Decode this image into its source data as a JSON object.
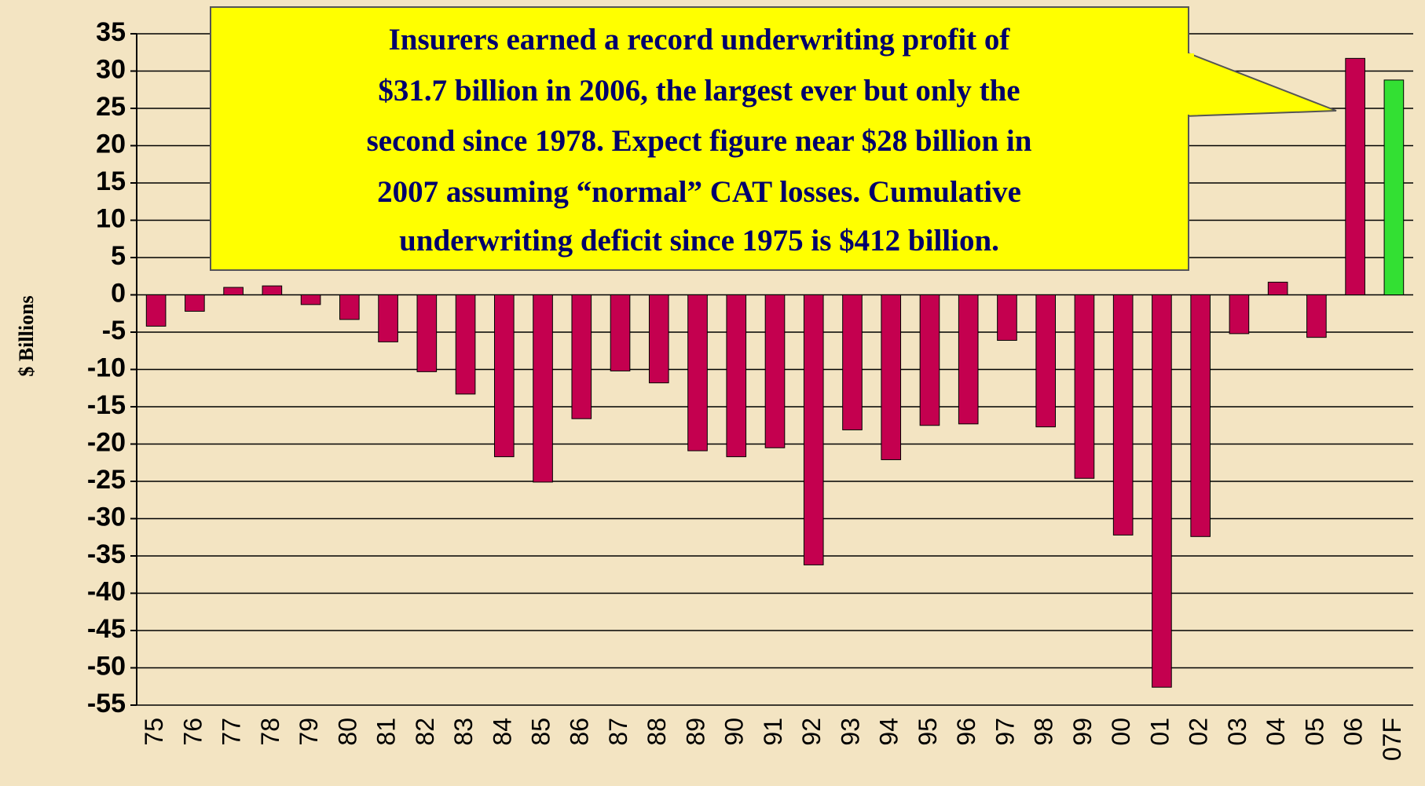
{
  "chart_data": {
    "type": "bar",
    "y_axis_label": "$ Billions",
    "annotation": [
      "Insurers earned a record underwriting profit of",
      "$31.7 billion in 2006, the largest ever but only the",
      "second since 1978.  Expect figure near $28 billion in",
      "2007 assuming “normal” CAT losses. Cumulative",
      "underwriting deficit since 1975 is $412 billion."
    ],
    "categories": [
      "75",
      "76",
      "77",
      "78",
      "79",
      "80",
      "81",
      "82",
      "83",
      "84",
      "85",
      "86",
      "87",
      "88",
      "89",
      "90",
      "91",
      "92",
      "93",
      "94",
      "95",
      "96",
      "97",
      "98",
      "99",
      "00",
      "01",
      "02",
      "03",
      "04",
      "05",
      "06",
      "07F"
    ],
    "values": [
      -4.2,
      -2.2,
      1.0,
      1.2,
      -1.3,
      -3.3,
      -6.3,
      -10.3,
      -13.3,
      -21.7,
      -25.1,
      -16.6,
      -10.2,
      -11.8,
      -20.9,
      -21.7,
      -20.5,
      -36.2,
      -18.1,
      -22.1,
      -17.5,
      -17.3,
      -6.1,
      -17.7,
      -24.6,
      -32.2,
      -52.6,
      -32.4,
      -5.2,
      1.7,
      -5.7,
      31.7,
      28.8
    ],
    "colors": [
      "#c4004f",
      "#c4004f",
      "#c4004f",
      "#c4004f",
      "#c4004f",
      "#c4004f",
      "#c4004f",
      "#c4004f",
      "#c4004f",
      "#c4004f",
      "#c4004f",
      "#c4004f",
      "#c4004f",
      "#c4004f",
      "#c4004f",
      "#c4004f",
      "#c4004f",
      "#c4004f",
      "#c4004f",
      "#c4004f",
      "#c4004f",
      "#c4004f",
      "#c4004f",
      "#c4004f",
      "#c4004f",
      "#c4004f",
      "#c4004f",
      "#c4004f",
      "#c4004f",
      "#c4004f",
      "#c4004f",
      "#c4004f",
      "#33e033"
    ],
    "ylim": [
      -55,
      35
    ],
    "yticks": [
      -55,
      -50,
      -45,
      -40,
      -35,
      -30,
      -25,
      -20,
      -15,
      -10,
      -5,
      0,
      5,
      10,
      15,
      20,
      25,
      30,
      35
    ],
    "grid": true
  }
}
